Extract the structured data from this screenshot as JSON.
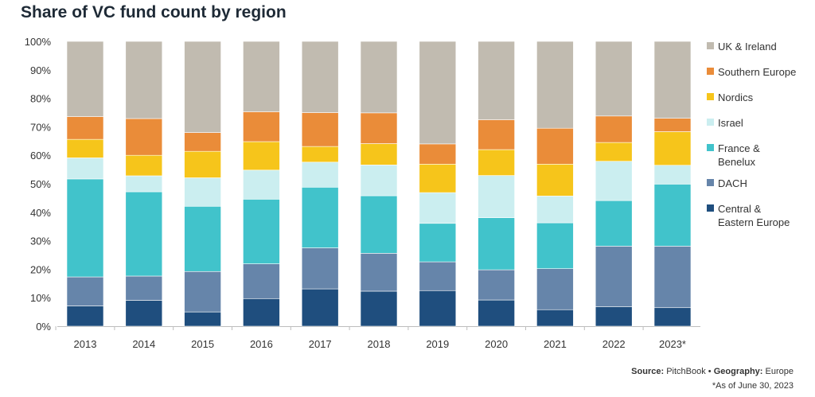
{
  "chart_data": {
    "type": "bar",
    "stacked": true,
    "title": "Share of VC fund count by region",
    "categories": [
      "2013",
      "2014",
      "2015",
      "2016",
      "2017",
      "2018",
      "2019",
      "2020",
      "2021",
      "2022",
      "2023*"
    ],
    "ylim": [
      0,
      100
    ],
    "yticks": [
      "0%",
      "10%",
      "20%",
      "30%",
      "40%",
      "50%",
      "60%",
      "70%",
      "80%",
      "90%",
      "100%"
    ],
    "legend_position": "right",
    "series": [
      {
        "name": "Central & Eastern Europe",
        "color": "#1f4e7e",
        "values": [
          7.1,
          9.1,
          5.0,
          9.7,
          13.1,
          12.3,
          12.5,
          9.2,
          5.8,
          6.8,
          6.5
        ]
      },
      {
        "name": "DACH",
        "color": "#6685aa",
        "values": [
          10.2,
          8.5,
          14.2,
          12.2,
          14.4,
          13.3,
          10.1,
          10.6,
          14.4,
          21.3,
          21.6
        ]
      },
      {
        "name": "France & Benelux",
        "color": "#41c3cb",
        "values": [
          34.4,
          29.6,
          22.9,
          22.7,
          21.3,
          20.2,
          13.5,
          18.3,
          16.1,
          16.0,
          21.8
        ]
      },
      {
        "name": "Israel",
        "color": "#cbeef0",
        "values": [
          7.4,
          5.6,
          10.0,
          10.2,
          8.8,
          10.8,
          10.8,
          14.8,
          9.4,
          13.8,
          6.6
        ]
      },
      {
        "name": "Nordics",
        "color": "#f6c51b",
        "values": [
          6.5,
          7.2,
          9.3,
          10.0,
          5.5,
          7.5,
          10.0,
          9.1,
          11.2,
          6.6,
          11.8
        ]
      },
      {
        "name": "Southern Europe",
        "color": "#ea8c39",
        "values": [
          8.0,
          12.9,
          6.6,
          10.5,
          11.9,
          10.8,
          7.1,
          10.5,
          12.6,
          9.3,
          4.7
        ]
      },
      {
        "name": "UK & Ireland",
        "color": "#c1bbb0",
        "values": [
          26.4,
          27.1,
          32.0,
          24.7,
          25.0,
          25.1,
          36.0,
          27.5,
          30.5,
          26.2,
          27.0
        ]
      }
    ],
    "legend": [
      "UK & Ireland",
      "Southern Europe",
      "Nordics",
      "Israel",
      "France & Benelux",
      "DACH",
      "Central & Eastern Europe"
    ]
  },
  "source": {
    "source_label": "Source:",
    "source_value": "PitchBook",
    "bullet": "•",
    "geo_label": "Geography:",
    "geo_value": "Europe",
    "note": "*As of June 30, 2023"
  }
}
